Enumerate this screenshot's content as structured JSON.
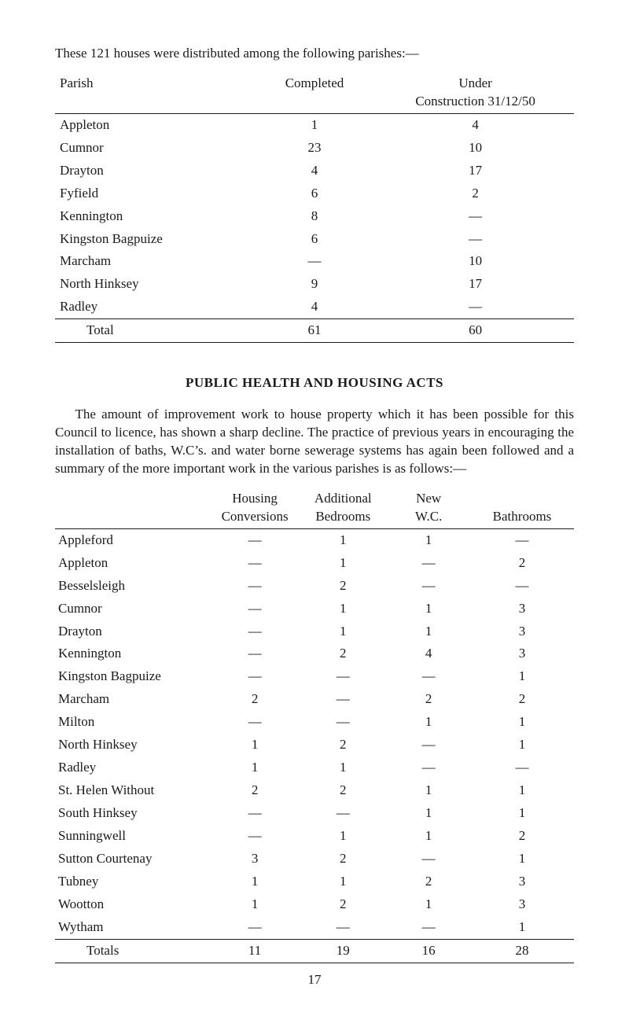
{
  "intro_text": "These 121 houses were distributed among the following parishes:—",
  "table1": {
    "headers": {
      "parish": "Parish",
      "completed": "Completed",
      "under_line1": "Under",
      "under_line2": "Construction 31/12/50"
    },
    "rows": [
      {
        "parish": "Appleton",
        "completed": "1",
        "under": "4"
      },
      {
        "parish": "Cumnor",
        "completed": "23",
        "under": "10"
      },
      {
        "parish": "Drayton",
        "completed": "4",
        "under": "17"
      },
      {
        "parish": "Fyfield",
        "completed": "6",
        "under": "2"
      },
      {
        "parish": "Kennington",
        "completed": "8",
        "under": "—"
      },
      {
        "parish": "Kingston Bagpuize",
        "completed": "6",
        "under": "—"
      },
      {
        "parish": "Marcham",
        "completed": "—",
        "under": "10"
      },
      {
        "parish": "North Hinksey",
        "completed": "9",
        "under": "17"
      },
      {
        "parish": "Radley",
        "completed": "4",
        "under": "—"
      }
    ],
    "total": {
      "label": "Total",
      "completed": "61",
      "under": "60"
    }
  },
  "section_title": "PUBLIC HEALTH AND HOUSING ACTS",
  "body_paragraph": "The amount of improvement work to house property which it has been possible for this Council to licence, has shown a sharp decline. The practice of previous years in encouraging the installation of baths, W.C’s. and water borne sewerage systems has again been followed and a summary of the more important work in the various parishes is as follows:—",
  "table2": {
    "headers": {
      "housing_line1": "Housing",
      "housing_line2": "Conversions",
      "additional_line1": "Additional",
      "additional_line2": "Bedrooms",
      "new_line1": "New",
      "new_line2": "W.C.",
      "bathrooms": "Bathrooms"
    },
    "rows": [
      {
        "name": "Appleford",
        "hc": "—",
        "ab": "1",
        "wc": "1",
        "bath": "—"
      },
      {
        "name": "Appleton",
        "hc": "—",
        "ab": "1",
        "wc": "—",
        "bath": "2"
      },
      {
        "name": "Besselsleigh",
        "hc": "—",
        "ab": "2",
        "wc": "—",
        "bath": "—"
      },
      {
        "name": "Cumnor",
        "hc": "—",
        "ab": "1",
        "wc": "1",
        "bath": "3"
      },
      {
        "name": "Drayton",
        "hc": "—",
        "ab": "1",
        "wc": "1",
        "bath": "3"
      },
      {
        "name": "Kennington",
        "hc": "—",
        "ab": "2",
        "wc": "4",
        "bath": "3"
      },
      {
        "name": "Kingston Bagpuize",
        "hc": "—",
        "ab": "—",
        "wc": "—",
        "bath": "1"
      },
      {
        "name": "Marcham",
        "hc": "2",
        "ab": "—",
        "wc": "2",
        "bath": "2"
      },
      {
        "name": "Milton",
        "hc": "—",
        "ab": "—",
        "wc": "1",
        "bath": "1"
      },
      {
        "name": "North Hinksey",
        "hc": "1",
        "ab": "2",
        "wc": "—",
        "bath": "1"
      },
      {
        "name": "Radley",
        "hc": "1",
        "ab": "1",
        "wc": "—",
        "bath": "—"
      },
      {
        "name": "St. Helen Without",
        "hc": "2",
        "ab": "2",
        "wc": "1",
        "bath": "1"
      },
      {
        "name": "South Hinksey",
        "hc": "—",
        "ab": "—",
        "wc": "1",
        "bath": "1"
      },
      {
        "name": "Sunningwell",
        "hc": "—",
        "ab": "1",
        "wc": "1",
        "bath": "2"
      },
      {
        "name": "Sutton Courtenay",
        "hc": "3",
        "ab": "2",
        "wc": "—",
        "bath": "1"
      },
      {
        "name": "Tubney",
        "hc": "1",
        "ab": "1",
        "wc": "2",
        "bath": "3"
      },
      {
        "name": "Wootton",
        "hc": "1",
        "ab": "2",
        "wc": "1",
        "bath": "3"
      },
      {
        "name": "Wytham",
        "hc": "—",
        "ab": "—",
        "wc": "—",
        "bath": "1"
      }
    ],
    "totals": {
      "label": "Totals",
      "hc": "11",
      "ab": "19",
      "wc": "16",
      "bath": "28"
    }
  },
  "page_number": "17",
  "colors": {
    "text": "#1a1a1a",
    "background": "#ffffff",
    "rule": "#1a1a1a"
  }
}
